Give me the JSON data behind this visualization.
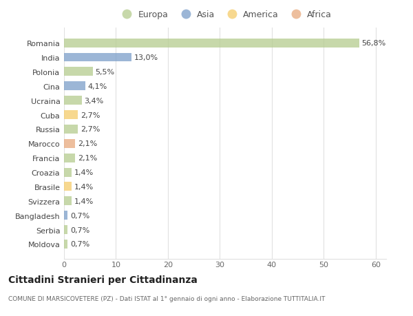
{
  "countries": [
    "Romania",
    "India",
    "Polonia",
    "Cina",
    "Ucraina",
    "Cuba",
    "Russia",
    "Marocco",
    "Francia",
    "Croazia",
    "Brasile",
    "Svizzera",
    "Bangladesh",
    "Serbia",
    "Moldova"
  ],
  "values": [
    56.8,
    13.0,
    5.5,
    4.1,
    3.4,
    2.7,
    2.7,
    2.1,
    2.1,
    1.4,
    1.4,
    1.4,
    0.7,
    0.7,
    0.7
  ],
  "labels": [
    "56,8%",
    "13,0%",
    "5,5%",
    "4,1%",
    "3,4%",
    "2,7%",
    "2,7%",
    "2,1%",
    "2,1%",
    "1,4%",
    "1,4%",
    "1,4%",
    "0,7%",
    "0,7%",
    "0,7%"
  ],
  "continents": [
    "Europa",
    "Asia",
    "Europa",
    "Asia",
    "Europa",
    "America",
    "Europa",
    "Africa",
    "Europa",
    "Europa",
    "America",
    "Europa",
    "Asia",
    "Europa",
    "Europa"
  ],
  "colors": {
    "Europa": "#b5cc8e",
    "Asia": "#7b9ec9",
    "America": "#f5cc6a",
    "Africa": "#e8a87c"
  },
  "legend_order": [
    "Europa",
    "Asia",
    "America",
    "Africa"
  ],
  "background_color": "#ffffff",
  "grid_color": "#e0e0e0",
  "title": "Cittadini Stranieri per Cittadinanza",
  "subtitle": "COMUNE DI MARSICOVETERE (PZ) - Dati ISTAT al 1° gennaio di ogni anno - Elaborazione TUTTITALIA.IT",
  "xlim": [
    0,
    62
  ],
  "xticks": [
    0,
    10,
    20,
    30,
    40,
    50,
    60
  ],
  "bar_alpha": 0.75,
  "label_fontsize": 8,
  "ytick_fontsize": 8,
  "xtick_fontsize": 8
}
